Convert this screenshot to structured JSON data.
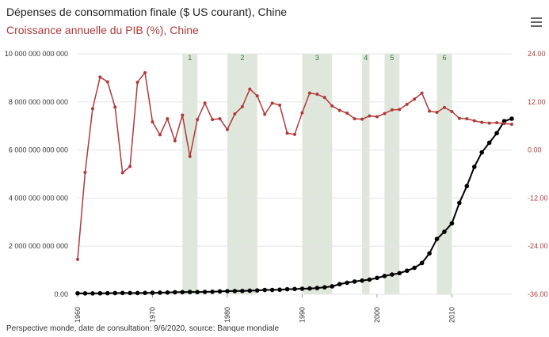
{
  "header": {
    "title": "Dépenses de consommation finale ($ US courant), Chine",
    "subtitle": "Croissance annuelle du PIB (%), Chine",
    "menu_icon": "hamburger-menu-icon"
  },
  "footer": {
    "source": "Perspective monde, date de consultation: 9/6/2020, source: Banque mondiale"
  },
  "colors": {
    "consumption": "#000000",
    "growth": "#b03a3a",
    "bands": "#dfe6dc",
    "grid": "#e6e6e6"
  },
  "chart_data": {
    "type": "line",
    "x": [
      1960,
      1961,
      1962,
      1963,
      1964,
      1965,
      1966,
      1967,
      1968,
      1969,
      1970,
      1971,
      1972,
      1973,
      1974,
      1975,
      1976,
      1977,
      1978,
      1979,
      1980,
      1981,
      1982,
      1983,
      1984,
      1985,
      1986,
      1987,
      1988,
      1989,
      1990,
      1991,
      1992,
      1993,
      1994,
      1995,
      1996,
      1997,
      1998,
      1999,
      2000,
      2001,
      2002,
      2003,
      2004,
      2005,
      2006,
      2007,
      2008,
      2009,
      2010,
      2011,
      2012,
      2013,
      2014,
      2015,
      2016,
      2017,
      2018
    ],
    "xlim": [
      1960,
      2018
    ],
    "x_ticks": [
      "1960",
      "1970",
      "1980",
      "1990",
      "2000",
      "2010"
    ],
    "series": [
      {
        "name": "Dépenses de consommation finale ($ US courant), Chine",
        "axis": "left",
        "values": [
          40000000000,
          38000000000,
          37000000000,
          40000000000,
          44000000000,
          50000000000,
          54000000000,
          52000000000,
          51000000000,
          56000000000,
          63000000000,
          67000000000,
          72000000000,
          85000000000,
          90000000000,
          95000000000,
          93000000000,
          98000000000,
          105000000000,
          120000000000,
          130000000000,
          135000000000,
          140000000000,
          150000000000,
          160000000000,
          180000000000,
          180000000000,
          190000000000,
          210000000000,
          220000000000,
          230000000000,
          240000000000,
          260000000000,
          290000000000,
          330000000000,
          420000000000,
          480000000000,
          530000000000,
          570000000000,
          610000000000,
          680000000000,
          760000000000,
          820000000000,
          880000000000,
          980000000000,
          1100000000000,
          1300000000000,
          1700000000000,
          2300000000000,
          2600000000000,
          2950000000000,
          3800000000000,
          4500000000000,
          5300000000000,
          5900000000000,
          6300000000000,
          6700000000000,
          7200000000000,
          7300000000000
        ]
      },
      {
        "name": "Croissance annuelle du PIB (%), Chine",
        "axis": "right",
        "values": [
          -27.3,
          -5.6,
          10.3,
          18.2,
          17.0,
          10.7,
          -5.7,
          -4.1,
          16.9,
          19.3,
          7.0,
          3.8,
          7.8,
          2.3,
          8.7,
          -1.6,
          7.6,
          11.7,
          7.6,
          7.8,
          5.1,
          9.0,
          10.8,
          15.2,
          13.5,
          8.9,
          11.7,
          11.2,
          4.2,
          3.9,
          9.3,
          14.2,
          13.9,
          13.1,
          11.0,
          9.9,
          9.2,
          7.8,
          7.7,
          8.5,
          8.3,
          9.1,
          10.0,
          10.1,
          11.4,
          12.7,
          14.2,
          9.7,
          9.4,
          10.6,
          9.6,
          7.9,
          7.8,
          7.3,
          6.9,
          6.7,
          6.8,
          6.6,
          6.4
        ]
      }
    ],
    "left_axis": {
      "ylim": [
        0,
        10000000000000
      ],
      "ticks": [
        "0.00",
        "2 000 000 000 000",
        "4 000 000 000 000",
        "6 000 000 000 000",
        "8 000 000 000 000",
        "10 000 000 000 000"
      ]
    },
    "right_axis": {
      "ylim": [
        -36,
        24
      ],
      "ticks": [
        "-36.00",
        "-24.00",
        "-12.00",
        "0.00",
        "12.00",
        "24.00"
      ]
    },
    "bands": [
      {
        "label": "1",
        "start": 1974,
        "end": 1976
      },
      {
        "label": "2",
        "start": 1980,
        "end": 1984
      },
      {
        "label": "3",
        "start": 1990,
        "end": 1994
      },
      {
        "label": "4",
        "start": 1998,
        "end": 1999
      },
      {
        "label": "5",
        "start": 2001,
        "end": 2003
      },
      {
        "label": "6",
        "start": 2008,
        "end": 2010
      }
    ]
  }
}
